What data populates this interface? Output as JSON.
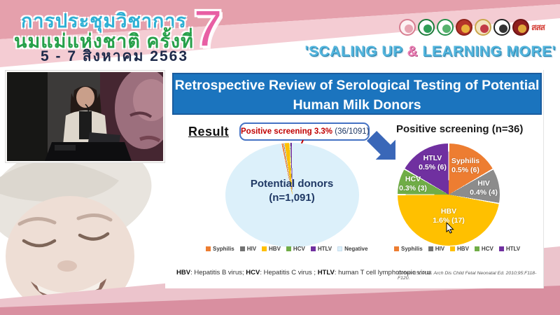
{
  "header": {
    "title_line1": "การประชุมวิชาการ",
    "title_line2": "นมแม่แห่งชาติ ครั้งที่",
    "edition_number": "7",
    "dates": "5 - 7 สิงหาคม 2563",
    "slogan": {
      "pre": "'SCALING UP ",
      "amp": "&",
      "post": " LEARNING MORE'"
    },
    "logos": [
      {
        "name": "logo-mother-child",
        "bg": "#fdf1f3",
        "border": "#d77d90",
        "inner": "#e7a4b2"
      },
      {
        "name": "logo-green-medical-seal",
        "bg": "#ffffff",
        "border": "#1c7a3a",
        "inner": "#2f9e57"
      },
      {
        "name": "logo-green-public-health-seal",
        "bg": "#ffffff",
        "border": "#27904a",
        "inner": "#57b26e"
      },
      {
        "name": "logo-red-gold-emblem",
        "bg": "#b5342a",
        "border": "#8f2119",
        "inner": "#e9b13c"
      },
      {
        "name": "logo-royal-crest",
        "bg": "#f3e3c0",
        "border": "#caa64c",
        "inner": "#c23b46"
      },
      {
        "name": "logo-black-round-emblem",
        "bg": "#ffffff",
        "border": "#222222",
        "inner": "#333333"
      },
      {
        "name": "logo-dark-red-round-emblem",
        "bg": "#8f1f1f",
        "border": "#6e1414",
        "inner": "#e0a63a"
      },
      {
        "name": "logo-thaihealth",
        "text": "สสส"
      }
    ]
  },
  "slide": {
    "title": "Retrospective Review of Serological Testing of Potential Human Milk Donors",
    "result_label": "Result",
    "callout": {
      "highlight": "Positive screening 3.3%",
      "detail": " (36/1091)"
    },
    "pie1_label": {
      "line1": "Potential donors",
      "line2": "(n=1,091)"
    },
    "pie2_title": "Positive screening (n=36)",
    "footnote": {
      "k1": "HBV",
      "t1": ": Hepatitis B virus; ",
      "k2": "HCV",
      "t2": ": Hepatitis C virus ; ",
      "k3": "HTLV",
      "t3": ": human T cell lymphotropic virus"
    },
    "citation": "Cohen RS, et al. Arch Dis Child Fetal Neonatal Ed. 2010;95:F118-F120."
  },
  "legends": [
    {
      "items": [
        {
          "name": "Syphilis",
          "color": "#ED7D31"
        },
        {
          "name": "HIV",
          "color": "#737373"
        },
        {
          "name": "HBV",
          "color": "#FFC000"
        },
        {
          "name": "HCV",
          "color": "#70AD47"
        },
        {
          "name": "HTLV",
          "color": "#7030A0"
        },
        {
          "name": "Negative",
          "color": "#DCF0FA",
          "border": "#c6dded"
        }
      ]
    },
    {
      "items": [
        {
          "name": "Syphilis",
          "color": "#ED7D31"
        },
        {
          "name": "HIV",
          "color": "#737373"
        },
        {
          "name": "HBV",
          "color": "#FFC000"
        },
        {
          "name": "HCV",
          "color": "#70AD47"
        },
        {
          "name": "HTLV",
          "color": "#7030A0"
        }
      ]
    }
  ],
  "chart_data": [
    {
      "type": "pie",
      "title": "Potential donors (n=1,091)",
      "annotation": "Positive screening 3.3% (36/1091)",
      "total": 1091,
      "start_deg": -12,
      "gap_deg": 0.5,
      "legend_position": "bottom",
      "slices": [
        {
          "name": "Syphilis",
          "value": 6,
          "color": "#ED7D31"
        },
        {
          "name": "HIV",
          "value": 4,
          "color": "#8C8C8C"
        },
        {
          "name": "HBV",
          "value": 17,
          "color": "#FFC000"
        },
        {
          "name": "HCV",
          "value": 3,
          "color": "#70AD47"
        },
        {
          "name": "HTLV",
          "value": 6,
          "color": "#7030A0"
        },
        {
          "name": "Negative",
          "value": 1055,
          "color": "#DCF0FA"
        }
      ]
    },
    {
      "type": "pie",
      "title": "Positive screening (n=36)",
      "total": 36,
      "start_deg": 0,
      "gap_deg": 1.4,
      "legend_position": "bottom",
      "slices": [
        {
          "name": "Syphilis",
          "value": 6,
          "display": "0.5% (6)",
          "color": "#ED7D31"
        },
        {
          "name": "HIV",
          "value": 4,
          "display": "0.4% (4)",
          "color": "#8C8C8C"
        },
        {
          "name": "HBV",
          "value": 17,
          "display": "1.6% (17)",
          "color": "#FFC000"
        },
        {
          "name": "HCV",
          "value": 3,
          "display": "0.3% (3)",
          "color": "#70AD47"
        },
        {
          "name": "HTLV",
          "value": 6,
          "display": "0.5% (6)",
          "color": "#7030A0"
        }
      ]
    }
  ],
  "colors": {
    "banner_blue": "#1B74BE",
    "arrow_blue": "#3A67B8",
    "callout_red": "#C00000",
    "header_pink_dark": "#E5A0AC",
    "header_pink_light": "#F4CCD3",
    "bottom_pink_dark": "#D98FA0"
  }
}
